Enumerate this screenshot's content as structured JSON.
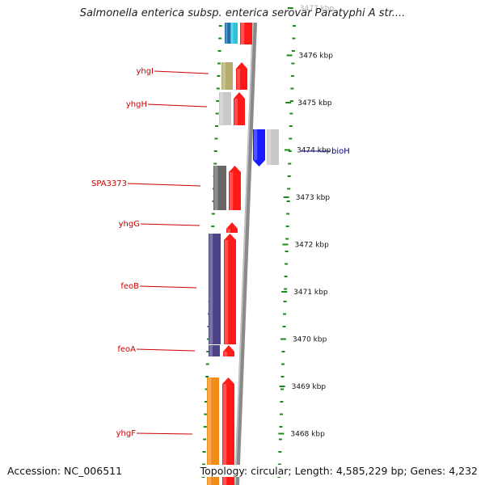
{
  "title": "Salmonella enterica subsp. enterica serovar Paratyphi A str....",
  "accession": "Accession: NC_006511",
  "summary": "Topology: circular; Length: 4,585,229 bp; Genes: 4,232",
  "scale_labels": [
    {
      "kbp": 3477,
      "text": "3477 kbp"
    },
    {
      "kbp": 3476,
      "text": "3476 kbp"
    },
    {
      "kbp": 3475,
      "text": "3475 kbp"
    },
    {
      "kbp": 3474,
      "text": "3474 kbp"
    },
    {
      "kbp": 3473,
      "text": "3473 kbp"
    },
    {
      "kbp": 3472,
      "text": "3472 kbp"
    },
    {
      "kbp": 3471,
      "text": "3471 kbp"
    },
    {
      "kbp": 3470,
      "text": "3470 kbp"
    },
    {
      "kbp": 3469,
      "text": "3469 kbp"
    },
    {
      "kbp": 3468,
      "text": "3468 kbp"
    }
  ],
  "genes": [
    {
      "name": "yhgI",
      "strand": "-",
      "color": "#b5ad6e"
    },
    {
      "name": "yhgH",
      "strand": "-",
      "color": "#c9c9c9"
    },
    {
      "name": "bioH",
      "strand": "+",
      "color": "#c9c9c9"
    },
    {
      "name": "SPA3373",
      "strand": "-",
      "color": "#666666"
    },
    {
      "name": "yhgG",
      "strand": "-",
      "color": ""
    },
    {
      "name": "feoB",
      "strand": "-",
      "color": "#4c4488"
    },
    {
      "name": "feoA",
      "strand": "-",
      "color": "#4c4488"
    },
    {
      "name": "yhgF",
      "strand": "-",
      "color": "#f08c1a"
    }
  ],
  "colors": {
    "cds": "#ff1a1a",
    "plus_cds": "#1a1aff",
    "minus_label": "#cc0000",
    "plus_label": "#000080",
    "backbone": "#8a8a8a",
    "ticks": "#1a8a1a",
    "top_cyan": "#26c6da",
    "top_blue": "#1e6fa8"
  }
}
